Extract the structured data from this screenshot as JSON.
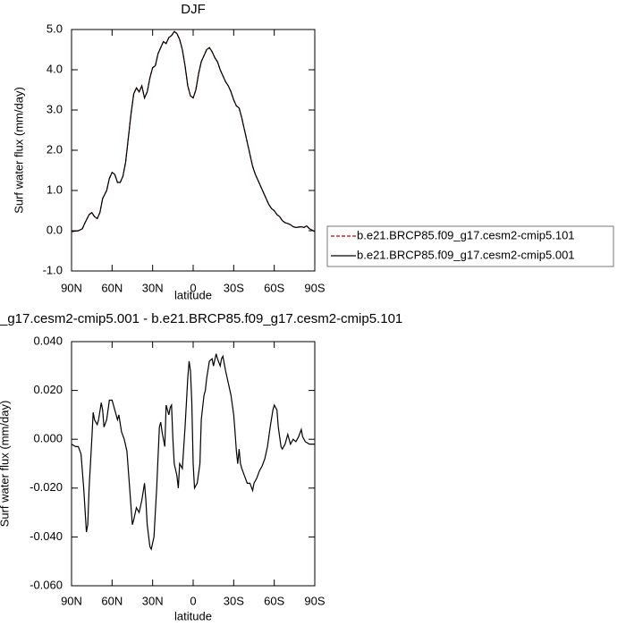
{
  "chart_data": [
    {
      "type": "line",
      "title": "DJF",
      "xlabel": "latitude",
      "ylabel": "Surf water flux (mm/day)",
      "x": [
        90,
        85,
        82,
        80,
        77,
        75,
        73,
        71,
        69,
        67,
        64,
        62,
        60,
        58,
        56,
        54,
        52,
        50,
        48,
        46,
        44,
        42,
        40,
        38,
        36,
        34,
        32,
        30,
        28,
        26,
        24,
        22,
        20,
        18,
        16,
        14,
        12,
        10,
        8,
        6,
        4,
        2,
        0,
        -2,
        -4,
        -6,
        -8,
        -10,
        -12,
        -14,
        -16,
        -18,
        -20,
        -22,
        -24,
        -26,
        -28,
        -30,
        -32,
        -34,
        -36,
        -38,
        -40,
        -42,
        -44,
        -46,
        -48,
        -50,
        -52,
        -54,
        -56,
        -58,
        -60,
        -62,
        -64,
        -66,
        -68,
        -70,
        -72,
        -74,
        -76,
        -80,
        -82,
        -84,
        -86,
        -90
      ],
      "series": [
        {
          "name": "b.e21.BRCP85.f09_g17.cesm2-cmip5.101",
          "color": "#cc0000",
          "linestyle": "dashed",
          "values": [
            -0.02,
            0.0,
            0.05,
            0.2,
            0.4,
            0.45,
            0.35,
            0.3,
            0.45,
            0.8,
            1.0,
            1.3,
            1.45,
            1.4,
            1.2,
            1.2,
            1.35,
            1.7,
            2.3,
            2.9,
            3.4,
            3.55,
            3.45,
            3.6,
            3.3,
            3.45,
            3.8,
            4.05,
            4.1,
            4.4,
            4.55,
            4.7,
            4.65,
            4.8,
            4.85,
            4.95,
            4.9,
            4.75,
            4.5,
            4.1,
            3.6,
            3.35,
            3.3,
            3.5,
            3.9,
            4.2,
            4.35,
            4.5,
            4.55,
            4.45,
            4.3,
            4.2,
            4.0,
            3.85,
            3.7,
            3.6,
            3.45,
            3.25,
            3.1,
            3.05,
            2.8,
            2.5,
            2.2,
            1.9,
            1.6,
            1.4,
            1.25,
            1.1,
            0.95,
            0.8,
            0.65,
            0.55,
            0.5,
            0.4,
            0.35,
            0.25,
            0.2,
            0.18,
            0.15,
            0.1,
            0.08,
            0.1,
            0.08,
            0.12,
            0.05,
            -0.02
          ]
        },
        {
          "name": "b.e21.BRCP85.f09_g17.cesm2-cmip5.001",
          "color": "#000000",
          "linestyle": "solid",
          "values": [
            -0.02,
            0.0,
            0.05,
            0.2,
            0.4,
            0.45,
            0.35,
            0.3,
            0.45,
            0.8,
            1.0,
            1.3,
            1.45,
            1.4,
            1.2,
            1.2,
            1.35,
            1.7,
            2.3,
            2.9,
            3.4,
            3.55,
            3.45,
            3.6,
            3.3,
            3.45,
            3.8,
            4.05,
            4.1,
            4.4,
            4.55,
            4.7,
            4.65,
            4.8,
            4.85,
            4.95,
            4.9,
            4.75,
            4.5,
            4.1,
            3.6,
            3.35,
            3.3,
            3.5,
            3.9,
            4.2,
            4.35,
            4.5,
            4.55,
            4.45,
            4.3,
            4.2,
            4.0,
            3.85,
            3.7,
            3.6,
            3.45,
            3.25,
            3.1,
            3.05,
            2.8,
            2.5,
            2.2,
            1.9,
            1.6,
            1.4,
            1.25,
            1.1,
            0.95,
            0.8,
            0.65,
            0.55,
            0.5,
            0.4,
            0.35,
            0.25,
            0.2,
            0.18,
            0.15,
            0.1,
            0.08,
            0.1,
            0.08,
            0.12,
            0.05,
            -0.02
          ]
        }
      ],
      "xlim": [
        90,
        -90
      ],
      "xticks": [
        {
          "value": 90,
          "label": "90N"
        },
        {
          "value": 60,
          "label": "60N"
        },
        {
          "value": 30,
          "label": "30N"
        },
        0,
        {
          "value": -30,
          "label": "30S"
        },
        {
          "value": -60,
          "label": "60S"
        },
        {
          "value": -90,
          "label": "90S"
        }
      ],
      "ylim": [
        -1,
        5
      ],
      "yticks": [
        {
          "value": -1,
          "label": "-1.0"
        },
        {
          "value": 0,
          "label": "0.0"
        },
        {
          "value": 1,
          "label": "1.0"
        },
        {
          "value": 2,
          "label": "2.0"
        },
        {
          "value": 3,
          "label": "3.0"
        },
        {
          "value": 4,
          "label": "4.0"
        },
        {
          "value": 5,
          "label": "5.0"
        }
      ],
      "legend": "right"
    },
    {
      "type": "line",
      "title": "_g17.cesm2-cmip5.001 - b.e21.BRCP85.f09_g17.cesm2-cmip5.101",
      "xlabel": "latitude",
      "ylabel": "Surf water flux (mm/day)",
      "x": [
        90,
        87,
        85,
        83,
        81,
        79,
        78,
        77,
        75,
        74,
        73,
        71,
        70,
        68,
        67,
        66,
        64,
        62,
        60,
        58,
        56,
        55,
        53,
        51,
        49,
        47,
        45,
        44,
        42,
        40,
        38,
        36,
        35,
        34,
        32,
        31,
        29,
        27,
        25,
        24,
        23,
        21,
        20,
        18,
        17,
        16,
        15,
        14,
        12,
        11,
        10,
        8,
        6,
        4,
        3,
        2,
        1,
        0,
        -1,
        -3,
        -5,
        -6,
        -8,
        -9,
        -10,
        -12,
        -14,
        -15,
        -17,
        -18,
        -20,
        -21,
        -22,
        -24,
        -26,
        -28,
        -30,
        -31,
        -32,
        -33,
        -34,
        -35,
        -36,
        -38,
        -40,
        -42,
        -44,
        -45,
        -47,
        -49,
        -51,
        -53,
        -55,
        -57,
        -59,
        -60,
        -62,
        -63,
        -65,
        -66,
        -68,
        -70,
        -72,
        -74,
        -76,
        -78,
        -80,
        -81,
        -83,
        -86,
        -90
      ],
      "values": [
        -0.002,
        -0.003,
        -0.003,
        -0.006,
        -0.02,
        -0.038,
        -0.035,
        -0.02,
        0.0,
        0.011,
        0.008,
        0.006,
        0.008,
        0.015,
        0.012,
        0.005,
        0.008,
        0.016,
        0.016,
        0.012,
        0.008,
        0.01,
        0.003,
        0.0,
        -0.005,
        -0.02,
        -0.035,
        -0.033,
        -0.028,
        -0.03,
        -0.025,
        -0.018,
        -0.025,
        -0.035,
        -0.044,
        -0.045,
        -0.04,
        -0.02,
        0.005,
        0.007,
        0.003,
        -0.003,
        0.014,
        0.01,
        0.013,
        0.014,
        0.0,
        -0.01,
        -0.015,
        -0.02,
        -0.01,
        -0.012,
        0.005,
        0.025,
        0.032,
        0.028,
        0.015,
        -0.01,
        -0.02,
        -0.018,
        -0.01,
        0.008,
        0.018,
        0.02,
        0.025,
        0.032,
        0.033,
        0.03,
        0.035,
        0.033,
        0.03,
        0.033,
        0.034,
        0.028,
        0.023,
        0.018,
        0.01,
        0.003,
        -0.005,
        -0.01,
        -0.004,
        -0.01,
        -0.012,
        -0.015,
        -0.018,
        -0.018,
        -0.021,
        -0.018,
        -0.016,
        -0.013,
        -0.011,
        -0.008,
        -0.003,
        0.005,
        0.012,
        0.014,
        0.012,
        0.005,
        -0.003,
        -0.004,
        -0.002,
        0.002,
        -0.002,
        0.0,
        -0.001,
        0.001,
        0.004,
        0.001,
        -0.001,
        -0.002,
        -0.002
      ],
      "color": "#000000",
      "linestyle": "solid",
      "xlim": [
        90,
        -90
      ],
      "xticks": [
        {
          "value": 90,
          "label": "90N"
        },
        {
          "value": 60,
          "label": "60N"
        },
        {
          "value": 30,
          "label": "30N"
        },
        0,
        {
          "value": -30,
          "label": "30S"
        },
        {
          "value": -60,
          "label": "60S"
        },
        {
          "value": -90,
          "label": "90S"
        }
      ],
      "ylim": [
        -0.06,
        0.04
      ],
      "yticks": [
        {
          "value": -0.06,
          "label": "-0.060"
        },
        {
          "value": -0.04,
          "label": "-0.040"
        },
        {
          "value": -0.02,
          "label": "-0.020"
        },
        {
          "value": 0,
          "label": "0.000"
        },
        {
          "value": 0.02,
          "label": "0.020"
        },
        {
          "value": 0.04,
          "label": "0.040"
        }
      ]
    }
  ]
}
